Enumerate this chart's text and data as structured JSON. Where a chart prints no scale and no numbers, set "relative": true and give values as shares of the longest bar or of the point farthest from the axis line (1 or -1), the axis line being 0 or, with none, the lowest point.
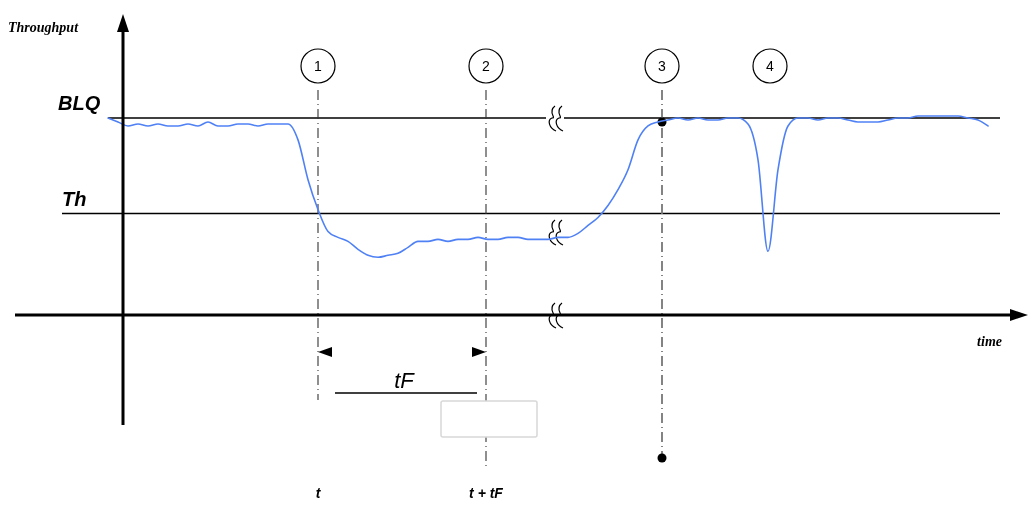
{
  "chart_data": {
    "type": "line",
    "relative": true,
    "xlabel": "time",
    "color": "#4f81f5",
    "categories": [
      null,
      null,
      null,
      null,
      null,
      null,
      null,
      null,
      null,
      null,
      null,
      null,
      null,
      null,
      null,
      null,
      null,
      null,
      null,
      null,
      null,
      null,
      null,
      null,
      null,
      null,
      null,
      null,
      null,
      null,
      null,
      null,
      null,
      null,
      null,
      null,
      null,
      null,
      null,
      null,
      null,
      null,
      null,
      null,
      null,
      null,
      null,
      null,
      null,
      null,
      null,
      null,
      null,
      null,
      null,
      null,
      null,
      null,
      null,
      null,
      null,
      null,
      null,
      null,
      null,
      null,
      null,
      null,
      null,
      null,
      null,
      null,
      null,
      null,
      null,
      null,
      null,
      null,
      null,
      null,
      null,
      null,
      null,
      null,
      null,
      null,
      null,
      null,
      null
    ],
    "values": [
      0.99,
      0.97,
      0.95,
      0.96,
      0.95,
      0.96,
      0.95,
      0.95,
      0.96,
      0.95,
      0.97,
      0.95,
      0.95,
      0.96,
      0.96,
      0.95,
      0.96,
      0.96,
      0.96,
      0.88,
      0.68,
      0.53,
      0.42,
      0.39,
      0.37,
      0.33,
      0.3,
      0.29,
      0.3,
      0.31,
      0.34,
      0.37,
      0.37,
      0.38,
      0.37,
      0.38,
      0.38,
      0.39,
      0.38,
      0.38,
      0.39,
      0.39,
      0.38,
      0.38,
      0.38,
      0.39,
      0.39,
      0.41,
      0.45,
      0.49,
      0.55,
      0.63,
      0.73,
      0.88,
      0.95,
      0.97,
      0.98,
      0.99,
      0.98,
      0.99,
      0.98,
      0.98,
      0.99,
      0.99,
      0.96,
      0.78,
      0.32,
      0.73,
      0.95,
      0.99,
      0.99,
      0.98,
      0.99,
      0.99,
      0.98,
      0.97,
      0.97,
      0.97,
      0.98,
      0.99,
      0.99,
      1,
      1,
      1,
      1,
      1,
      0.99,
      0.98,
      0.95
    ],
    "ref_lines": [
      {
        "axis": "y",
        "value": 0.99,
        "label": "BLQ",
        "color": "#000000"
      },
      {
        "axis": "y",
        "value": 0.51,
        "label": "Th",
        "color": "#000000"
      }
    ],
    "annotations": [
      "Throughput",
      "1",
      "2",
      "3",
      "4",
      "tF",
      "t",
      "t + tF"
    ]
  }
}
